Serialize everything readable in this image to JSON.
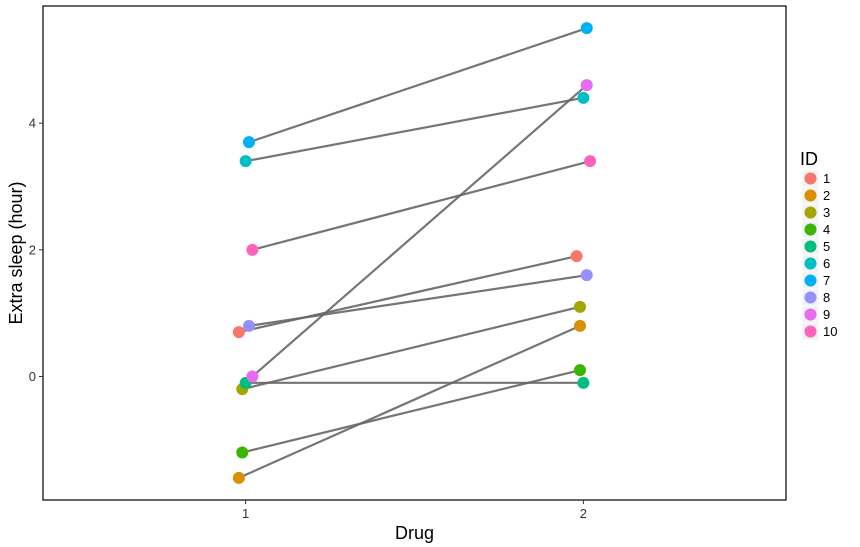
{
  "chart_data": {
    "type": "scatter",
    "title": "",
    "xlabel": "Drug",
    "ylabel": "Extra sleep (hour)",
    "x_ticks": [
      "1",
      "2"
    ],
    "y_ticks": [
      "0",
      "2",
      "4"
    ],
    "ylim": [
      -1.95,
      5.85
    ],
    "xlim": [
      0.4,
      2.6
    ],
    "legend": {
      "title": "ID",
      "position": "right",
      "entries": [
        {
          "label": "1",
          "color": "#F8766D"
        },
        {
          "label": "2",
          "color": "#D89000"
        },
        {
          "label": "3",
          "color": "#A3A500"
        },
        {
          "label": "4",
          "color": "#39B600"
        },
        {
          "label": "5",
          "color": "#00BF7D"
        },
        {
          "label": "6",
          "color": "#00BFC4"
        },
        {
          "label": "7",
          "color": "#00B0F6"
        },
        {
          "label": "8",
          "color": "#9590FF"
        },
        {
          "label": "9",
          "color": "#E76BF3"
        },
        {
          "label": "10",
          "color": "#FF62BC"
        }
      ]
    },
    "line_color": "#666666",
    "series": [
      {
        "id": "1",
        "x1": 0.98,
        "y1": 0.7,
        "x2": 1.98,
        "y2": 1.9
      },
      {
        "id": "2",
        "x1": 0.98,
        "y1": -1.6,
        "x2": 1.99,
        "y2": 0.8
      },
      {
        "id": "3",
        "x1": 0.99,
        "y1": -0.2,
        "x2": 1.99,
        "y2": 1.1
      },
      {
        "id": "4",
        "x1": 0.99,
        "y1": -1.2,
        "x2": 1.99,
        "y2": 0.1
      },
      {
        "id": "5",
        "x1": 1.0,
        "y1": -0.1,
        "x2": 2.0,
        "y2": -0.1
      },
      {
        "id": "6",
        "x1": 1.0,
        "y1": 3.4,
        "x2": 2.0,
        "y2": 4.4
      },
      {
        "id": "7",
        "x1": 1.01,
        "y1": 3.7,
        "x2": 2.01,
        "y2": 5.5
      },
      {
        "id": "8",
        "x1": 1.01,
        "y1": 0.8,
        "x2": 2.01,
        "y2": 1.6
      },
      {
        "id": "9",
        "x1": 1.02,
        "y1": 0.0,
        "x2": 2.01,
        "y2": 4.6
      },
      {
        "id": "10",
        "x1": 1.02,
        "y1": 2.0,
        "x2": 2.02,
        "y2": 3.4
      }
    ]
  }
}
